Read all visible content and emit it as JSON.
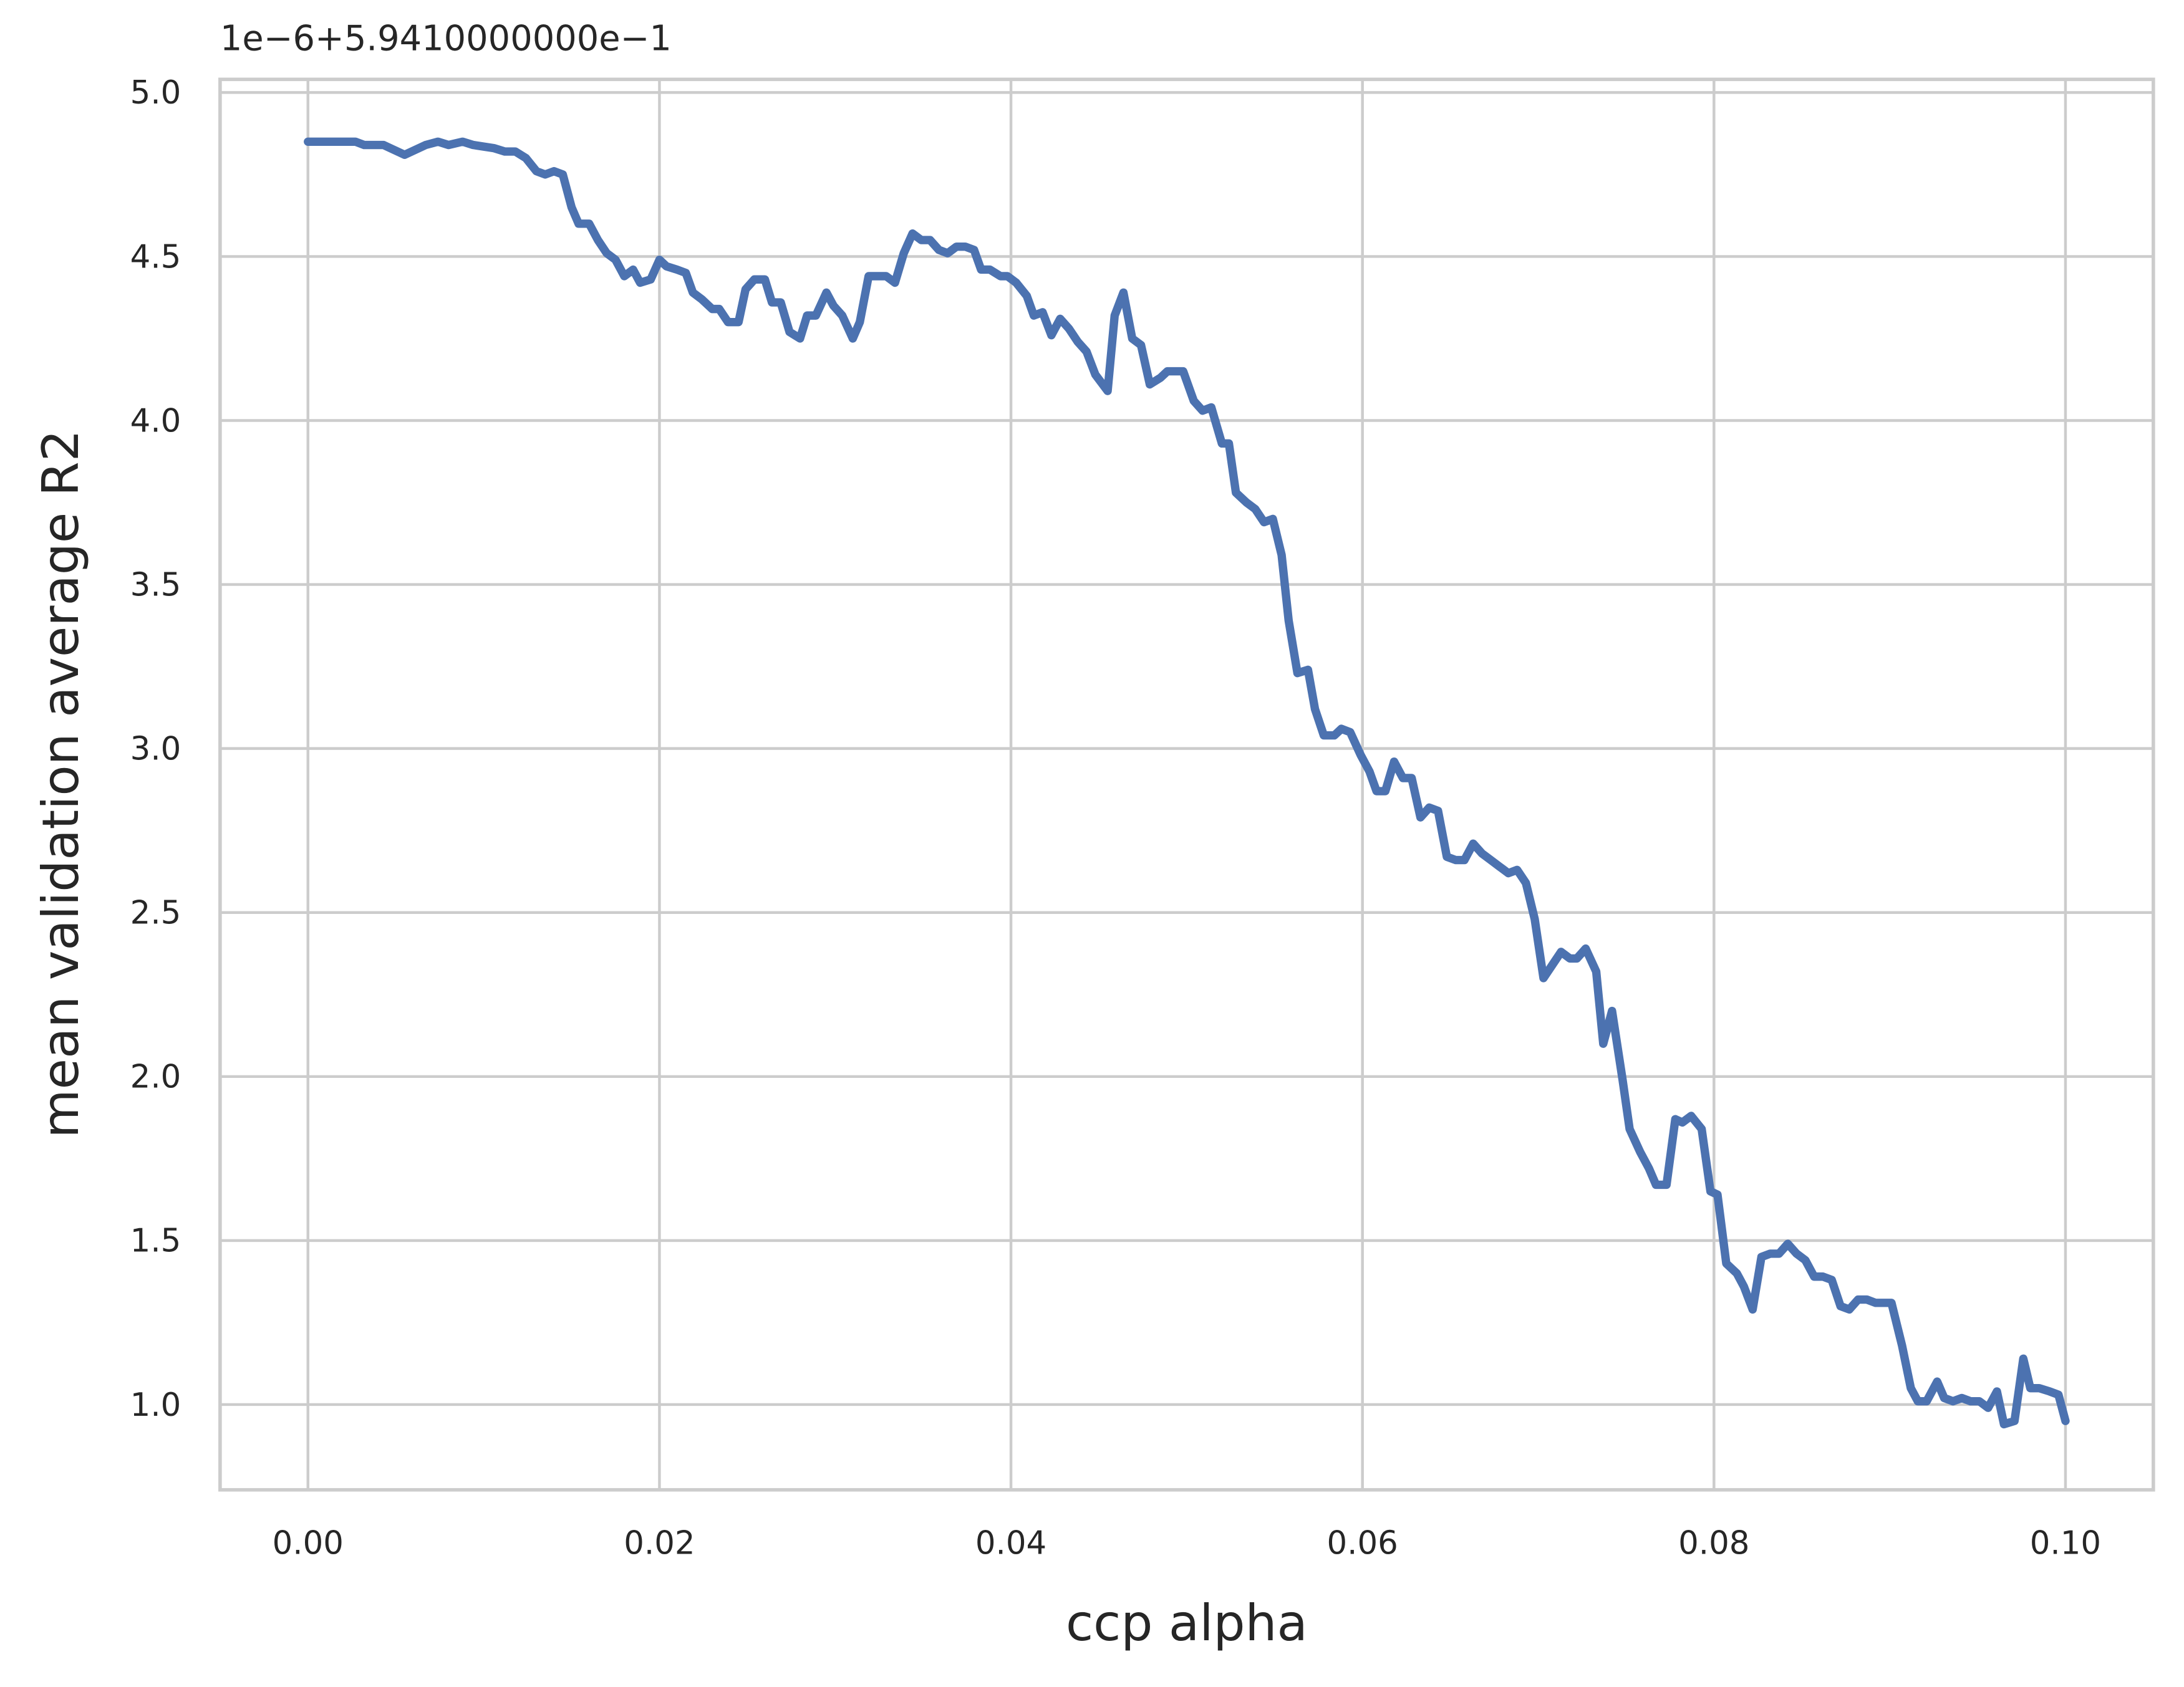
{
  "chart_data": {
    "type": "line",
    "offset_text": "1e−6+5.9410000000e−1",
    "x_label": "ccp alpha",
    "y_label": "mean validation average R2",
    "xlim": [
      -0.005,
      0.105
    ],
    "ylim": [
      0.74,
      5.04
    ],
    "xticks": [
      {
        "value": 0,
        "label": "0.00"
      },
      {
        "value": 0.02,
        "label": "0.02"
      },
      {
        "value": 0.04,
        "label": "0.04"
      },
      {
        "value": 0.06,
        "label": "0.06"
      },
      {
        "value": 0.08,
        "label": "0.08"
      },
      {
        "value": 0.1,
        "label": "0.10"
      }
    ],
    "yticks": [
      {
        "value": 1,
        "label": "1.0"
      },
      1.5,
      {
        "value": 2,
        "label": "2.0"
      },
      2.5,
      {
        "value": 3,
        "label": "3.0"
      },
      3.5,
      {
        "value": 4,
        "label": "4.0"
      },
      4.5,
      {
        "value": 5,
        "label": "5.0"
      }
    ],
    "grid": true,
    "x": [
      0.0,
      0.0027,
      0.0032,
      0.0043,
      0.0055,
      0.0067,
      0.0074,
      0.008,
      0.0088,
      0.0094,
      0.0106,
      0.0112,
      0.0118,
      0.0124,
      0.013,
      0.0135,
      0.014,
      0.0145,
      0.015,
      0.0154,
      0.016,
      0.0165,
      0.017,
      0.0175,
      0.018,
      0.0185,
      0.0189,
      0.0195,
      0.02,
      0.0204,
      0.021,
      0.0215,
      0.0219,
      0.0224,
      0.023,
      0.0234,
      0.0239,
      0.0245,
      0.0249,
      0.0254,
      0.026,
      0.0264,
      0.0269,
      0.0274,
      0.028,
      0.0284,
      0.0289,
      0.0295,
      0.0299,
      0.0304,
      0.031,
      0.0314,
      0.0319,
      0.0324,
      0.0329,
      0.0334,
      0.0339,
      0.0344,
      0.0349,
      0.0354,
      0.0359,
      0.0364,
      0.0369,
      0.0374,
      0.0379,
      0.0383,
      0.0388,
      0.0394,
      0.0398,
      0.0403,
      0.0409,
      0.0413,
      0.0418,
      0.0423,
      0.0428,
      0.0433,
      0.0438,
      0.0443,
      0.0448,
      0.0455,
      0.0459,
      0.0464,
      0.0469,
      0.0474,
      0.0479,
      0.0485,
      0.0489,
      0.0498,
      0.0504,
      0.0509,
      0.0514,
      0.052,
      0.0524,
      0.0528,
      0.0534,
      0.0539,
      0.0544,
      0.0549,
      0.0554,
      0.0558,
      0.0563,
      0.0569,
      0.0573,
      0.0578,
      0.0584,
      0.0588,
      0.0593,
      0.0599,
      0.0604,
      0.0608,
      0.0613,
      0.0618,
      0.0623,
      0.0628,
      0.0633,
      0.0638,
      0.0643,
      0.0648,
      0.0653,
      0.0658,
      0.0663,
      0.0668,
      0.0673,
      0.0678,
      0.0683,
      0.0688,
      0.0693,
      0.0698,
      0.0703,
      0.0708,
      0.0713,
      0.0718,
      0.0722,
      0.0727,
      0.0733,
      0.0737,
      0.0742,
      0.0748,
      0.0752,
      0.0758,
      0.0763,
      0.0767,
      0.0773,
      0.0778,
      0.0782,
      0.0787,
      0.0793,
      0.0798,
      0.0802,
      0.0807,
      0.0813,
      0.0817,
      0.0822,
      0.0827,
      0.0832,
      0.0837,
      0.0842,
      0.0847,
      0.0852,
      0.0857,
      0.0862,
      0.0867,
      0.0872,
      0.0877,
      0.0882,
      0.0887,
      0.0892,
      0.0897,
      0.0901,
      0.0907,
      0.0912,
      0.0916,
      0.0921,
      0.0927,
      0.0931,
      0.0936,
      0.0941,
      0.0946,
      0.0951,
      0.0956,
      0.0961,
      0.0965,
      0.0971,
      0.0976,
      0.098,
      0.0985,
      0.0991,
      0.0996,
      0.1
    ],
    "series": [
      {
        "color": "#4c72b0",
        "values": [
          4.85,
          4.85,
          4.84,
          4.84,
          4.81,
          4.84,
          4.85,
          4.84,
          4.85,
          4.84,
          4.83,
          4.82,
          4.82,
          4.8,
          4.76,
          4.75,
          4.76,
          4.75,
          4.65,
          4.6,
          4.6,
          4.55,
          4.51,
          4.49,
          4.44,
          4.46,
          4.42,
          4.43,
          4.49,
          4.47,
          4.46,
          4.45,
          4.39,
          4.37,
          4.34,
          4.34,
          4.3,
          4.3,
          4.4,
          4.43,
          4.43,
          4.36,
          4.36,
          4.27,
          4.25,
          4.32,
          4.32,
          4.39,
          4.35,
          4.32,
          4.25,
          4.3,
          4.44,
          4.44,
          4.44,
          4.42,
          4.51,
          4.57,
          4.55,
          4.55,
          4.52,
          4.51,
          4.53,
          4.53,
          4.52,
          4.46,
          4.46,
          4.44,
          4.44,
          4.42,
          4.38,
          4.32,
          4.33,
          4.26,
          4.31,
          4.28,
          4.24,
          4.21,
          4.14,
          4.09,
          4.32,
          4.39,
          4.25,
          4.23,
          4.11,
          4.13,
          4.15,
          4.15,
          4.06,
          4.03,
          4.04,
          3.93,
          3.93,
          3.78,
          3.75,
          3.73,
          3.69,
          3.7,
          3.59,
          3.39,
          3.23,
          3.24,
          3.12,
          3.04,
          3.04,
          3.06,
          3.05,
          2.98,
          2.93,
          2.87,
          2.87,
          2.96,
          2.91,
          2.91,
          2.79,
          2.82,
          2.81,
          2.67,
          2.66,
          2.66,
          2.71,
          2.68,
          2.66,
          2.64,
          2.62,
          2.63,
          2.59,
          2.48,
          2.3,
          2.34,
          2.38,
          2.36,
          2.36,
          2.39,
          2.32,
          2.1,
          2.2,
          1.99,
          1.84,
          1.77,
          1.72,
          1.67,
          1.67,
          1.87,
          1.86,
          1.88,
          1.84,
          1.65,
          1.64,
          1.43,
          1.4,
          1.36,
          1.29,
          1.45,
          1.46,
          1.46,
          1.49,
          1.46,
          1.44,
          1.39,
          1.39,
          1.38,
          1.3,
          1.29,
          1.32,
          1.32,
          1.31,
          1.31,
          1.31,
          1.18,
          1.05,
          1.01,
          1.01,
          1.07,
          1.02,
          1.01,
          1.02,
          1.01,
          1.01,
          0.99,
          1.04,
          0.94,
          0.95,
          1.14,
          1.05,
          1.05,
          1.04,
          1.03,
          0.95
        ]
      }
    ]
  }
}
